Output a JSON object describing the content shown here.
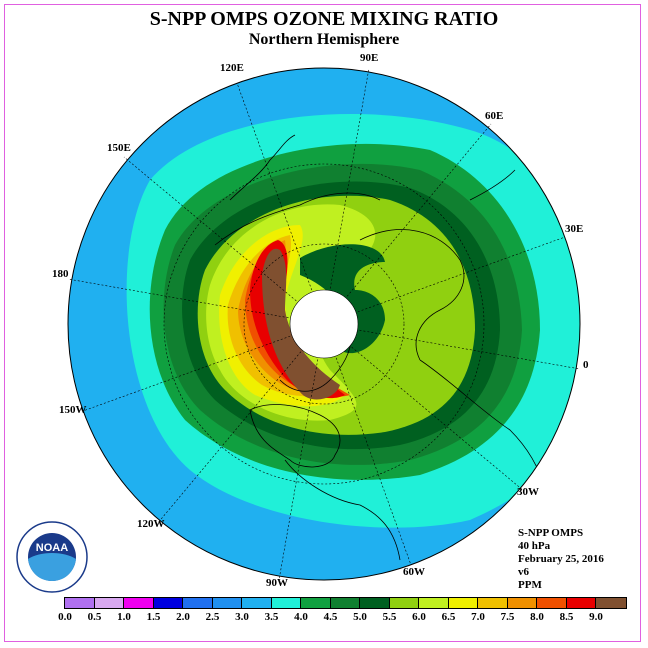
{
  "title": "S-NPP OMPS OZONE MIXING RATIO",
  "subtitle": "Northern Hemisphere",
  "longitude_labels": {
    "e90": "90E",
    "e120": "120E",
    "e60": "60E",
    "e150": "150E",
    "e30": "30E",
    "d180": "180",
    "d0": "0",
    "w150": "150W",
    "w30": "30W",
    "w120": "120W",
    "w60": "60W",
    "w90": "90W"
  },
  "info": {
    "instrument": "S-NPP OMPS",
    "level": "40 hPa",
    "date": "February 25, 2016",
    "version": "v6",
    "units": "PPM"
  },
  "logo_text": "NOAA",
  "colorbar": {
    "ticks": [
      "0.0",
      "0.5",
      "1.0",
      "1.5",
      "2.0",
      "2.5",
      "3.0",
      "3.5",
      "4.0",
      "4.5",
      "5.0",
      "5.5",
      "6.0",
      "6.5",
      "7.0",
      "7.5",
      "8.0",
      "8.5",
      "9.0"
    ],
    "colors": [
      "#b070f0",
      "#d8a8f0",
      "#f000f0",
      "#0000e0",
      "#2070f0",
      "#2090f0",
      "#20b0f0",
      "#20f0d8",
      "#10a040",
      "#108030",
      "#006020",
      "#90d010",
      "#c0f020",
      "#f0f000",
      "#f0c000",
      "#f09000",
      "#f05000",
      "#e80000",
      "#805030"
    ]
  },
  "colors": {
    "band_3_0_3_5": "#20b0f0",
    "band_3_5_4_0": "#20f0d8",
    "band_4_0_4_5": "#10a040",
    "band_4_5_5_0": "#108030",
    "band_5_0_5_5": "#006020",
    "band_5_5_6_0": "#90d010",
    "band_6_0_6_5": "#c0f020",
    "band_6_5_7_0": "#f0f000",
    "band_7_0_7_5": "#f0c000",
    "band_7_5_8_0": "#f09000",
    "band_8_0_8_5": "#f05000",
    "band_8_5_9_0": "#e80000",
    "band_gt_9_0": "#805030",
    "frame": "#e060e0"
  }
}
